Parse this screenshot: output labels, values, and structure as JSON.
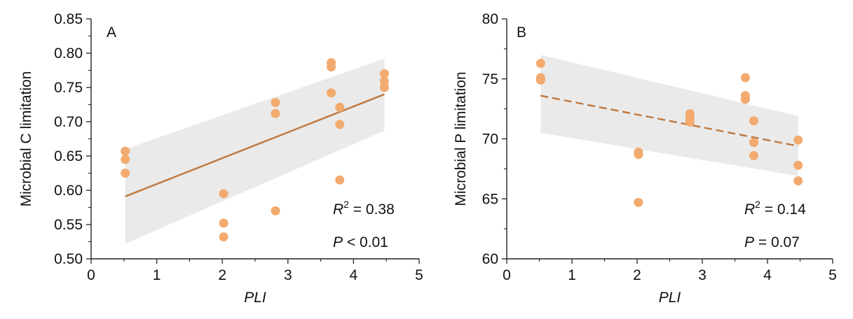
{
  "colors": {
    "point": "#f2aa6e",
    "line_a": "#c07a42",
    "line_b": "#c07a42",
    "band": "#e3e3e3",
    "axis": "#222222"
  },
  "chart_data": [
    {
      "type": "scatter",
      "panel_label": "A",
      "xlabel": "PLI",
      "ylabel": "Microbial C limitation",
      "xlim": [
        0,
        5
      ],
      "ylim": [
        0.5,
        0.85
      ],
      "xticks": [
        "0",
        "1",
        "2",
        "3",
        "4",
        "5"
      ],
      "yticks": [
        "0.50",
        "0.55",
        "0.60",
        "0.65",
        "0.70",
        "0.75",
        "0.80",
        "0.85"
      ],
      "grid": false,
      "points": [
        {
          "x": 0.52,
          "y": 0.657
        },
        {
          "x": 0.52,
          "y": 0.645
        },
        {
          "x": 0.52,
          "y": 0.625
        },
        {
          "x": 2.02,
          "y": 0.595
        },
        {
          "x": 2.02,
          "y": 0.552
        },
        {
          "x": 2.02,
          "y": 0.532
        },
        {
          "x": 2.81,
          "y": 0.728
        },
        {
          "x": 2.81,
          "y": 0.712
        },
        {
          "x": 2.81,
          "y": 0.57
        },
        {
          "x": 3.66,
          "y": 0.786
        },
        {
          "x": 3.66,
          "y": 0.78
        },
        {
          "x": 3.66,
          "y": 0.742
        },
        {
          "x": 3.79,
          "y": 0.721
        },
        {
          "x": 3.79,
          "y": 0.696
        },
        {
          "x": 3.79,
          "y": 0.615
        },
        {
          "x": 4.47,
          "y": 0.77
        },
        {
          "x": 4.47,
          "y": 0.759
        },
        {
          "x": 4.47,
          "y": 0.75
        }
      ],
      "fit": {
        "x": [
          0.52,
          4.47
        ],
        "y": [
          0.591,
          0.74
        ],
        "style": "solid"
      },
      "ci_band": {
        "x": [
          0.52,
          4.47
        ],
        "upper": [
          0.66,
          0.792
        ],
        "lower": [
          0.522,
          0.687
        ]
      },
      "annotations": {
        "r2_value": "0.38",
        "p_text": "< 0.01"
      }
    },
    {
      "type": "scatter",
      "panel_label": "B",
      "xlabel": "PLI",
      "ylabel": "Microbial P limitation",
      "xlim": [
        0,
        5
      ],
      "ylim": [
        60,
        80
      ],
      "xticks": [
        "0",
        "1",
        "2",
        "3",
        "4",
        "5"
      ],
      "yticks": [
        "60",
        "65",
        "70",
        "75",
        "80"
      ],
      "grid": false,
      "points": [
        {
          "x": 0.52,
          "y": 76.3
        },
        {
          "x": 0.52,
          "y": 75.1
        },
        {
          "x": 0.52,
          "y": 74.9
        },
        {
          "x": 2.02,
          "y": 68.9
        },
        {
          "x": 2.02,
          "y": 68.7
        },
        {
          "x": 2.02,
          "y": 64.7
        },
        {
          "x": 2.81,
          "y": 72.1
        },
        {
          "x": 2.81,
          "y": 71.8
        },
        {
          "x": 2.81,
          "y": 71.4
        },
        {
          "x": 3.66,
          "y": 75.1
        },
        {
          "x": 3.66,
          "y": 73.6
        },
        {
          "x": 3.66,
          "y": 73.3
        },
        {
          "x": 3.79,
          "y": 71.5
        },
        {
          "x": 3.79,
          "y": 69.7
        },
        {
          "x": 3.79,
          "y": 68.6
        },
        {
          "x": 4.47,
          "y": 69.9
        },
        {
          "x": 4.47,
          "y": 67.8
        },
        {
          "x": 4.47,
          "y": 66.5
        }
      ],
      "fit": {
        "x": [
          0.52,
          4.47
        ],
        "y": [
          73.6,
          69.4
        ],
        "style": "dashed"
      },
      "ci_band": {
        "x": [
          0.52,
          4.47
        ],
        "upper": [
          77.0,
          71.9
        ],
        "lower": [
          70.5,
          66.9
        ]
      },
      "annotations": {
        "r2_value": "0.14",
        "p_text": "= 0.07"
      }
    }
  ]
}
